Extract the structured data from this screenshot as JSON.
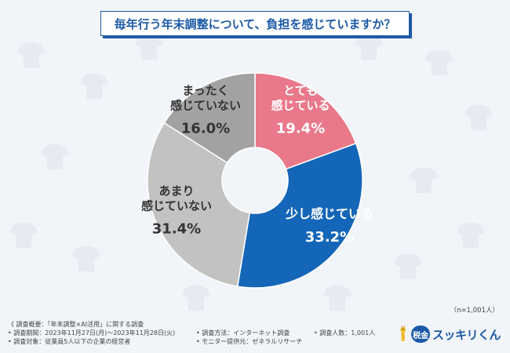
{
  "title": "毎年行う年末調整について、負担を感じていますか？",
  "sample_note": "（n=1,001人）",
  "chart_data": {
    "type": "pie",
    "donut": true,
    "categories": [
      "とても感じている",
      "少し感じている",
      "あまり感じていない",
      "まったく感じていない"
    ],
    "values": [
      19.4,
      33.2,
      31.4,
      16.0
    ],
    "unit": "%",
    "value_labels": [
      "19.4%",
      "33.2%",
      "31.4%",
      "16.0%"
    ],
    "label_lines": [
      [
        "とても",
        "感じている"
      ],
      [
        "少し感じている"
      ],
      [
        "あまり",
        "感じていない"
      ],
      [
        "まったく",
        "感じていない"
      ]
    ],
    "colors": [
      "#e8788a",
      "#1466b8",
      "#c2c2c2",
      "#a2a2a2"
    ],
    "label_colors": [
      "#ffffff",
      "#ffffff",
      "#333333",
      "#333333"
    ],
    "start_angle_deg": 0,
    "direction": "clockwise"
  },
  "footer": {
    "overview": "《 調査概要：「年末調整×AI活用」に関する調査",
    "period": "• 調査期間：2023年11月27日(月)～2023年11月28日(火)",
    "method": "• 調査方法：インターネット調査",
    "count": "• 調査人数：1,001人",
    "target": "• 調査対象：従業員5人以下の企業の経営者",
    "provider": "• モニター提供元：ゼネラルリサーチ"
  },
  "logo": {
    "badge": "税金",
    "text": "スッキリくん",
    "icon": "giraffe-mascot-icon",
    "color": "#1c5aa8"
  }
}
